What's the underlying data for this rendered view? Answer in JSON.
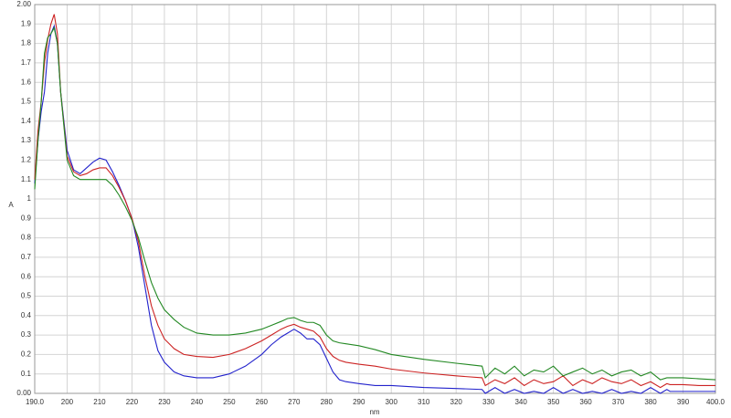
{
  "chart_data": {
    "type": "line",
    "x_label": "nm",
    "y_label": "A",
    "x": [
      190,
      191,
      192,
      193,
      194,
      195,
      196,
      197,
      198,
      200,
      202,
      204,
      206,
      208,
      210,
      212,
      214,
      216,
      218,
      220,
      222,
      224,
      226,
      228,
      230,
      233,
      236,
      240,
      245,
      250,
      255,
      260,
      263,
      266,
      268,
      270,
      272,
      274,
      276,
      278,
      280,
      282,
      284,
      286,
      290,
      295,
      300,
      310,
      320,
      328,
      329,
      332,
      335,
      338,
      341,
      344,
      347,
      350,
      353,
      356,
      359,
      362,
      365,
      368,
      371,
      374,
      377,
      380,
      383,
      385,
      386,
      390,
      395,
      400
    ],
    "series": [
      {
        "name": "blue",
        "color": "#2222cc",
        "values": [
          1.08,
          1.3,
          1.45,
          1.55,
          1.75,
          1.85,
          1.89,
          1.8,
          1.55,
          1.25,
          1.15,
          1.13,
          1.16,
          1.19,
          1.21,
          1.2,
          1.14,
          1.07,
          0.99,
          0.9,
          0.75,
          0.55,
          0.35,
          0.22,
          0.16,
          0.11,
          0.09,
          0.08,
          0.08,
          0.1,
          0.14,
          0.2,
          0.25,
          0.29,
          0.31,
          0.33,
          0.31,
          0.28,
          0.28,
          0.25,
          0.18,
          0.11,
          0.07,
          0.06,
          0.05,
          0.04,
          0.04,
          0.03,
          0.025,
          0.02,
          0.0,
          0.03,
          0.0,
          0.02,
          0.0,
          0.01,
          0.0,
          0.03,
          0.0,
          0.02,
          0.0,
          0.01,
          0.0,
          0.02,
          0.0,
          0.01,
          0.0,
          0.03,
          0.0,
          0.02,
          0.01,
          0.01,
          0.01,
          0.01
        ]
      },
      {
        "name": "red",
        "color": "#cc2222",
        "values": [
          1.1,
          1.35,
          1.5,
          1.7,
          1.82,
          1.9,
          1.95,
          1.85,
          1.55,
          1.22,
          1.14,
          1.12,
          1.13,
          1.15,
          1.16,
          1.16,
          1.12,
          1.06,
          0.99,
          0.9,
          0.78,
          0.6,
          0.45,
          0.35,
          0.28,
          0.23,
          0.2,
          0.19,
          0.185,
          0.2,
          0.23,
          0.27,
          0.3,
          0.33,
          0.345,
          0.355,
          0.34,
          0.33,
          0.32,
          0.29,
          0.23,
          0.19,
          0.17,
          0.16,
          0.15,
          0.14,
          0.125,
          0.105,
          0.09,
          0.08,
          0.04,
          0.07,
          0.05,
          0.08,
          0.04,
          0.07,
          0.05,
          0.06,
          0.09,
          0.04,
          0.07,
          0.05,
          0.08,
          0.06,
          0.05,
          0.07,
          0.04,
          0.06,
          0.03,
          0.05,
          0.045,
          0.045,
          0.04,
          0.04
        ]
      },
      {
        "name": "green",
        "color": "#228822",
        "values": [
          1.05,
          1.3,
          1.5,
          1.75,
          1.83,
          1.85,
          1.88,
          1.8,
          1.55,
          1.2,
          1.12,
          1.1,
          1.1,
          1.1,
          1.1,
          1.1,
          1.07,
          1.02,
          0.96,
          0.89,
          0.8,
          0.68,
          0.57,
          0.49,
          0.43,
          0.38,
          0.34,
          0.31,
          0.3,
          0.3,
          0.31,
          0.33,
          0.35,
          0.37,
          0.385,
          0.39,
          0.375,
          0.365,
          0.365,
          0.35,
          0.3,
          0.27,
          0.26,
          0.255,
          0.245,
          0.225,
          0.2,
          0.175,
          0.155,
          0.14,
          0.08,
          0.13,
          0.1,
          0.14,
          0.09,
          0.12,
          0.11,
          0.14,
          0.09,
          0.11,
          0.13,
          0.1,
          0.12,
          0.09,
          0.11,
          0.12,
          0.09,
          0.11,
          0.07,
          0.08,
          0.08,
          0.08,
          0.075,
          0.07
        ]
      }
    ],
    "xlim": [
      190,
      400
    ],
    "xticks": [
      {
        "value": 190,
        "label": "190.0"
      },
      200,
      210,
      220,
      230,
      240,
      250,
      260,
      270,
      280,
      290,
      300,
      310,
      320,
      330,
      340,
      350,
      360,
      370,
      380,
      390,
      {
        "value": 400,
        "label": "400.0"
      }
    ],
    "ylim": [
      0,
      2
    ],
    "yticks": [
      {
        "value": 0,
        "label": "0.00"
      },
      0.1,
      0.2,
      0.3,
      0.4,
      0.5,
      0.6,
      0.7,
      0.8,
      0.9,
      1.0,
      1.1,
      1.2,
      1.3,
      1.4,
      1.5,
      1.6,
      1.7,
      1.8,
      1.9,
      {
        "value": 2,
        "label": "2.00"
      }
    ],
    "grid": true
  }
}
